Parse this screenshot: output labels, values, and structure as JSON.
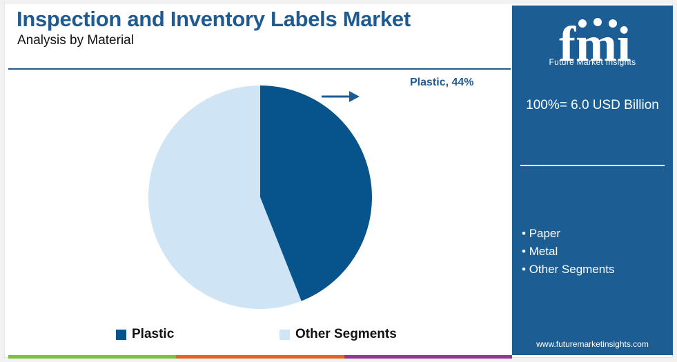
{
  "header": {
    "title": "Inspection and Inventory Labels Market",
    "subtitle": "Analysis by Material"
  },
  "chart_data": {
    "type": "pie",
    "title": "Inspection and Inventory Labels Market",
    "subtitle": "Analysis by Material",
    "slices": [
      {
        "name": "Plastic",
        "value": 44,
        "color": "#07548c"
      },
      {
        "name": "Other Segments",
        "value": 56,
        "color": "#cfe4f4"
      }
    ],
    "callout": "Plastic, 44%",
    "legend_position": "bottom"
  },
  "legend": {
    "items": [
      {
        "label": "Plastic",
        "color": "#07548c"
      },
      {
        "label": "Other Segments",
        "color": "#cfe4f4"
      }
    ]
  },
  "side_panel": {
    "brand": "fmi",
    "brand_sub": "Future Market Insights",
    "total": "100%= 6.0 USD Billion",
    "other_segments": [
      "Paper",
      "Metal",
      "Other Segments"
    ],
    "url": "www.futuremarketinsights.com",
    "bg_color": "#1c5d94"
  },
  "colors": {
    "accent": "#1f5b91",
    "bottom_bar": [
      "#7bbf44",
      "#e2632a",
      "#8e3a8c",
      "#1c5d94"
    ]
  }
}
